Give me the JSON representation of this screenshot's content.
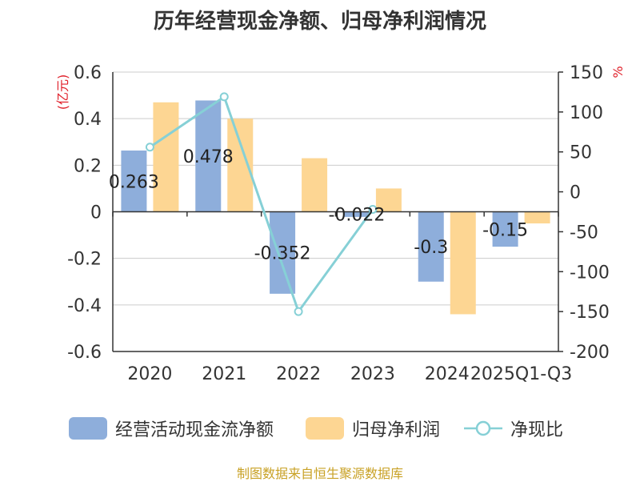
{
  "chart_data": {
    "type": "bar",
    "title": "历年经营现金净额、归母净利润情况",
    "categories": [
      "2020",
      "2021",
      "2022",
      "2023",
      "2024",
      "2025Q1-Q3"
    ],
    "series": [
      {
        "name": "经营活动现金流净额",
        "type": "bar",
        "axis": "left",
        "color": "#8eaedb",
        "values": [
          0.263,
          0.478,
          -0.352,
          -0.022,
          -0.3,
          -0.15
        ],
        "labels": [
          "0.263",
          "0.478",
          "-0.352",
          "-0.022",
          "-0.3",
          "-0.15"
        ]
      },
      {
        "name": "归母净利润",
        "type": "bar",
        "axis": "left",
        "color": "#fdd693",
        "values": [
          0.47,
          0.4,
          0.23,
          0.1,
          -0.44,
          -0.05
        ]
      },
      {
        "name": "净现比",
        "type": "line",
        "axis": "right",
        "color": "#86d0d6",
        "values": [
          56,
          119,
          -150,
          -22,
          null,
          null
        ]
      }
    ],
    "left_axis": {
      "unit": "(亿元)",
      "min": -0.6,
      "max": 0.6,
      "ticks": [
        "0.6",
        "0.4",
        "0.2",
        "0",
        "-0.2",
        "-0.4",
        "-0.6"
      ]
    },
    "right_axis": {
      "unit": "%",
      "min": -200,
      "max": 150,
      "ticks": [
        "150",
        "100",
        "50",
        "0",
        "-50",
        "-100",
        "-150",
        "-200"
      ]
    },
    "legend_position": "bottom",
    "grid": true,
    "source": "制图数据来自恒生聚源数据库"
  },
  "colors": {
    "axis": "#333333",
    "grid": "#cccccc",
    "unit": "#e0202a",
    "source": "#c9a227"
  }
}
